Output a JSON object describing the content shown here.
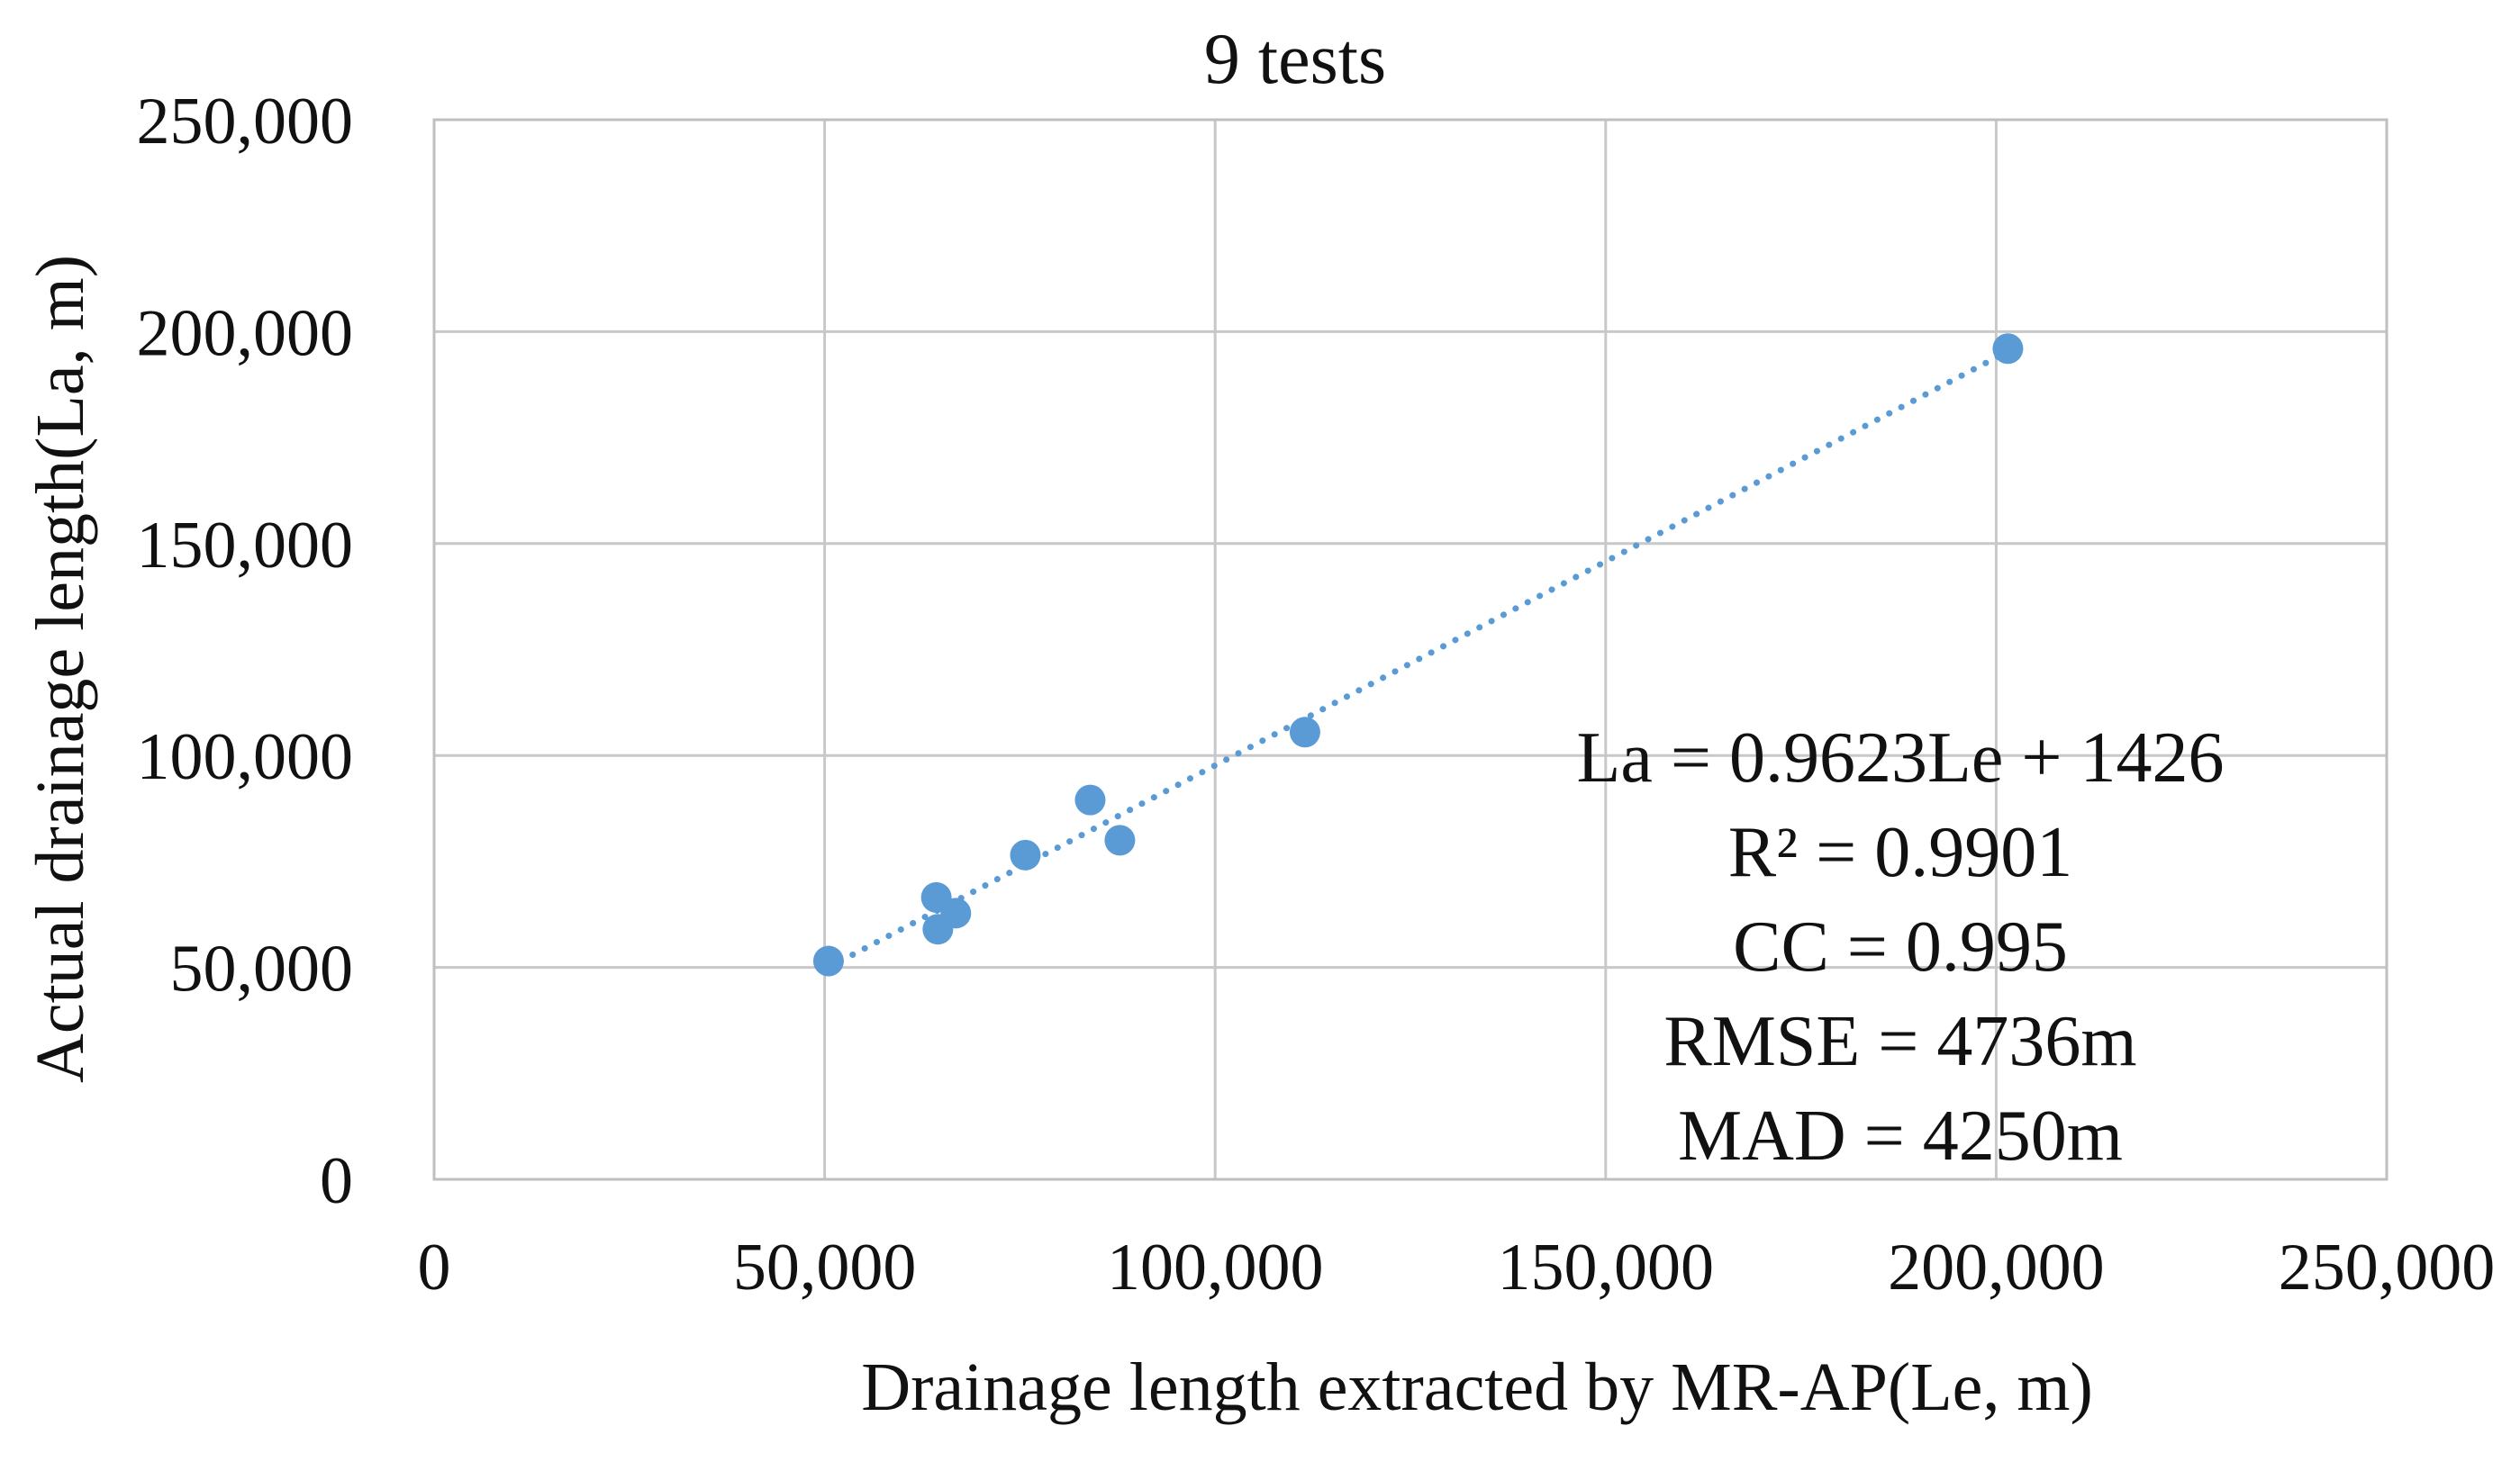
{
  "chart_data": {
    "type": "scatter",
    "title": "9 tests",
    "xlabel": "Drainage length extracted by MR-AP(Le, m)",
    "ylabel": "Actual drainage length(La, m)",
    "xlim": [
      0,
      250000
    ],
    "ylim": [
      0,
      250000
    ],
    "x_ticks": [
      0,
      50000,
      100000,
      150000,
      200000,
      250000
    ],
    "y_ticks": [
      0,
      50000,
      100000,
      150000,
      200000,
      250000
    ],
    "x_tick_labels": [
      "0",
      "50,000",
      "100,000",
      "150,000",
      "200,000",
      "250,000"
    ],
    "y_tick_labels": [
      "0",
      "50,000",
      "100,000",
      "150,000",
      "200,000",
      "250,000"
    ],
    "grid": true,
    "marker_color": "#5b9bd5",
    "trendline_color": "#5b9bd5",
    "series": [
      {
        "points": [
          {
            "x": 50500,
            "y": 51500
          },
          {
            "x": 64300,
            "y": 66500
          },
          {
            "x": 64500,
            "y": 59000
          },
          {
            "x": 66800,
            "y": 62800
          },
          {
            "x": 75700,
            "y": 76500
          },
          {
            "x": 84000,
            "y": 89500
          },
          {
            "x": 87800,
            "y": 80000
          },
          {
            "x": 111500,
            "y": 105500
          },
          {
            "x": 201500,
            "y": 196000
          }
        ]
      }
    ],
    "trendline": {
      "slope": 0.9623,
      "intercept": 1426,
      "x_range": [
        50500,
        201500
      ],
      "style": "dotted"
    },
    "annotations": [
      "La = 0.9623Le + 1426",
      "R² = 0.9901",
      "CC = 0.995",
      "RMSE = 4736m",
      "MAD = 4250m"
    ]
  }
}
